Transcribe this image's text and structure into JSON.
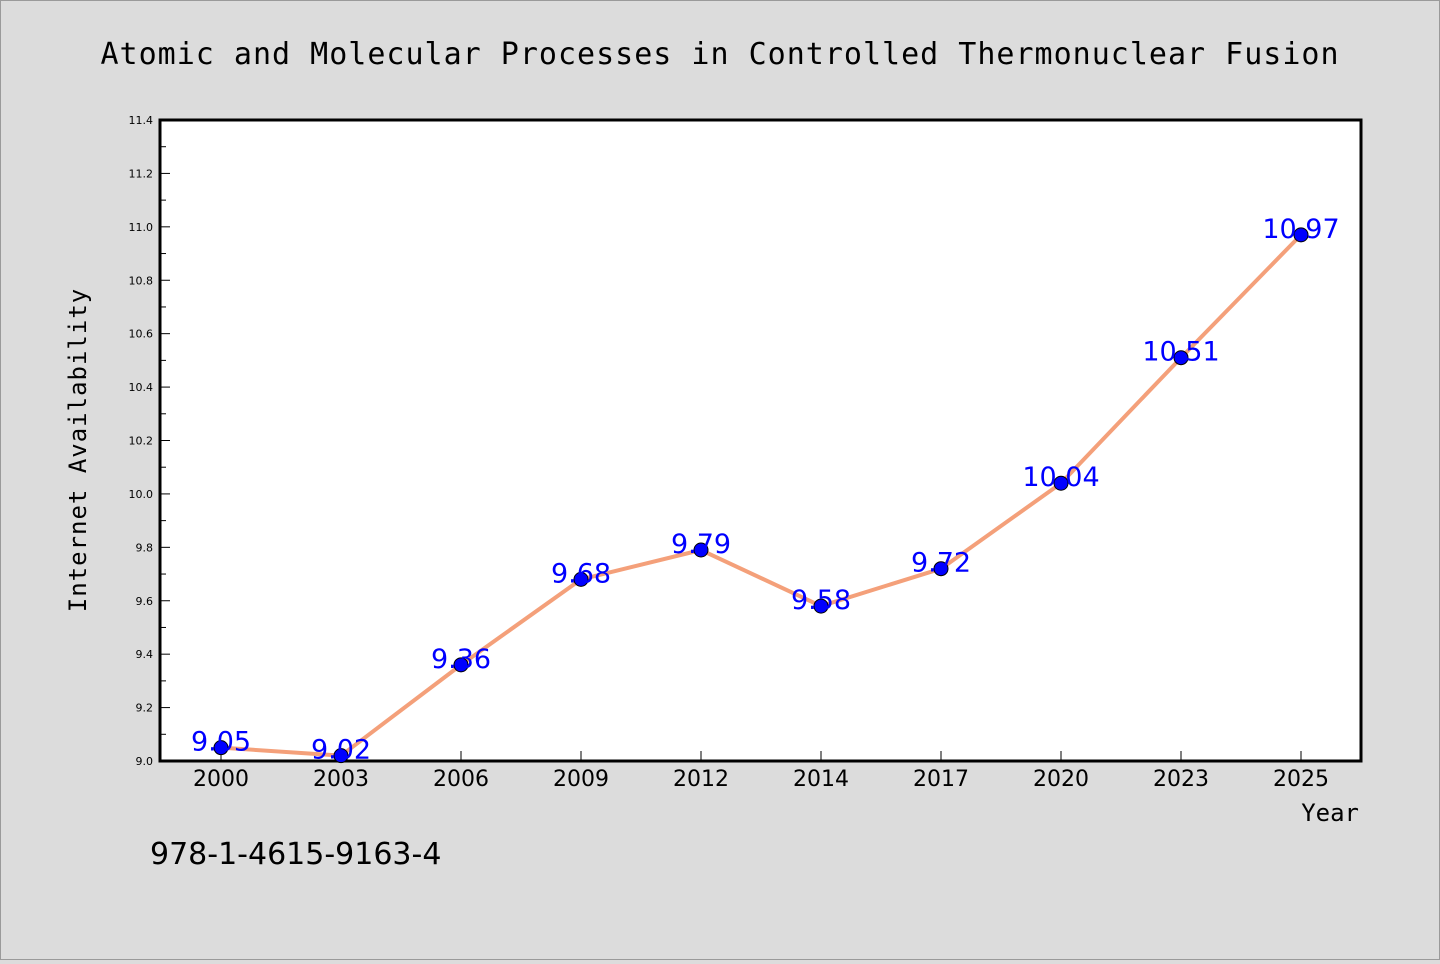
{
  "chart_data": {
    "type": "line",
    "title": "Atomic and Molecular Processes in Controlled Thermonuclear Fusion",
    "xlabel": "Year",
    "ylabel": "Internet Availability",
    "categories": [
      "2000",
      "2003",
      "2006",
      "2009",
      "2012",
      "2014",
      "2017",
      "2020",
      "2023",
      "2025"
    ],
    "values": [
      9.05,
      9.02,
      9.36,
      9.68,
      9.79,
      9.58,
      9.72,
      10.04,
      10.51,
      10.97
    ],
    "data_labels": [
      "9.05",
      "9.02",
      "9.36",
      "9.68",
      "9.79",
      "9.58",
      "9.72",
      "10.04",
      "10.51",
      "10.97"
    ],
    "ylim": [
      9.0,
      11.4
    ],
    "yticks": [
      "9.0",
      "9.2",
      "9.4",
      "9.6",
      "9.8",
      "10.0",
      "10.2",
      "10.4",
      "10.6",
      "10.8",
      "11.0",
      "11.2",
      "11.4"
    ],
    "grid": false,
    "legend": "none",
    "line_color": "#f4a07a",
    "marker_color": "#0000ff",
    "label_color": "#0000ff"
  },
  "isbn": "978-1-4615-9163-4"
}
